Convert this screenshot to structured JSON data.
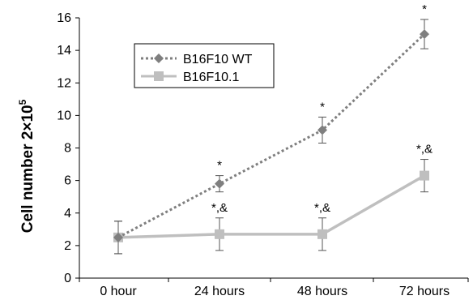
{
  "chart_data": {
    "type": "line",
    "categories": [
      "0 hour",
      "24 hours",
      "48 hours",
      "72 hours"
    ],
    "ylabel_main": "Cell number 2×10",
    "ylabel_sup": "5",
    "ylim": [
      0,
      16
    ],
    "yticks": [
      "0",
      "2",
      "4",
      "6",
      "8",
      "10",
      "12",
      "14",
      "16"
    ],
    "series": [
      {
        "name": "B16F10 WT",
        "values": [
          2.5,
          5.8,
          9.1,
          15.0
        ],
        "error": [
          1.0,
          0.5,
          0.8,
          0.9
        ],
        "color": "#7f7f7f",
        "style": "dotted",
        "marker": "diamond",
        "annotations": [
          "",
          "*",
          "*",
          "*"
        ]
      },
      {
        "name": "B16F10.1",
        "values": [
          2.5,
          2.7,
          2.7,
          6.3
        ],
        "error": [
          1.0,
          1.0,
          1.0,
          1.0
        ],
        "color": "#bfbfbf",
        "style": "solid",
        "marker": "square",
        "annotations": [
          "",
          "*,&",
          "*,&",
          "*,&"
        ]
      }
    ],
    "legend_position": "top-left"
  }
}
